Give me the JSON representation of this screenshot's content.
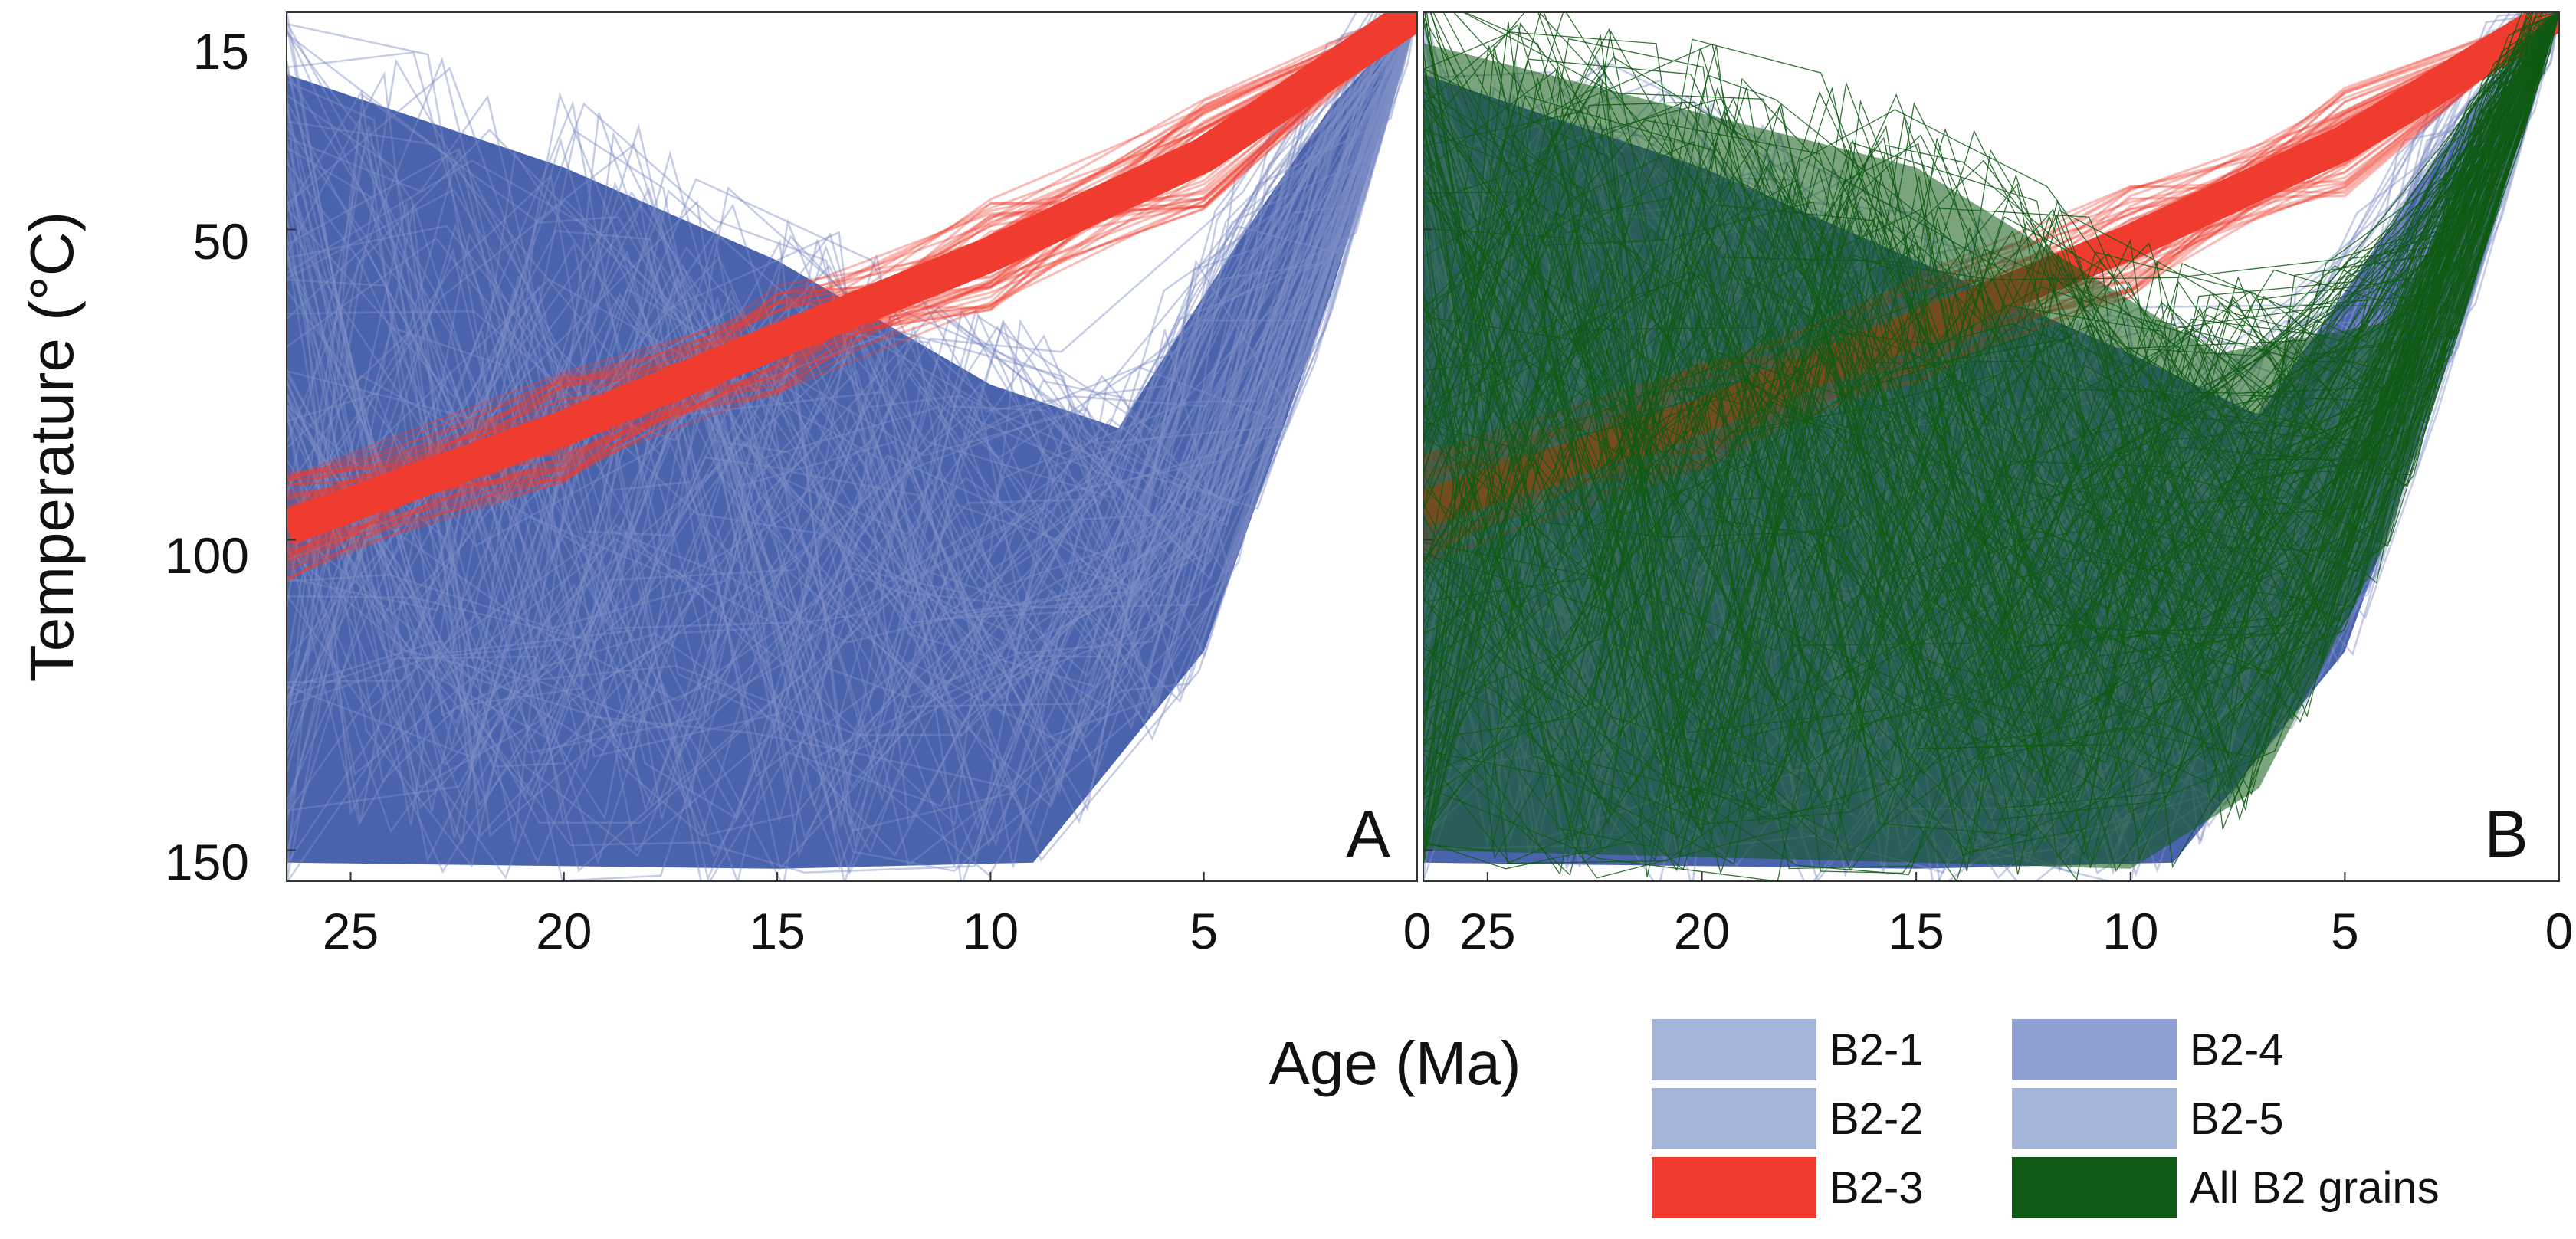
{
  "chart_data": {
    "type": "line",
    "ylabel": "Temperature (°C)",
    "xlabel": "Age (Ma)",
    "xlim": [
      26.5,
      0
    ],
    "ylim": [
      15,
      155
    ],
    "x_ticks": [
      25,
      20,
      15,
      10,
      5,
      0
    ],
    "y_ticks": [
      15,
      50,
      100,
      150
    ],
    "panels": [
      {
        "label": "A",
        "series": [
          {
            "name": "B2-1..B2-5 (blue)",
            "color": "#4a63ad",
            "description": "dense envelope of cooling paths",
            "upper_envelope": [
              [
                26.5,
                25
              ],
              [
                20,
                40
              ],
              [
                15,
                55
              ],
              [
                10,
                75
              ],
              [
                7,
                82
              ],
              [
                4,
                50
              ],
              [
                2,
                30
              ],
              [
                0,
                15
              ]
            ],
            "lower_envelope": [
              [
                26.5,
                152
              ],
              [
                15,
                153
              ],
              [
                9,
                152
              ],
              [
                5,
                118
              ],
              [
                2,
                60
              ],
              [
                0,
                15
              ]
            ]
          },
          {
            "name": "B2-3 (red)",
            "color": "#f03c2e",
            "description": "narrow band of linear cooling",
            "path": [
              [
                26.5,
                98
              ],
              [
                20,
                82
              ],
              [
                15,
                68
              ],
              [
                10,
                54
              ],
              [
                5,
                38
              ],
              [
                0,
                15
              ]
            ]
          }
        ]
      },
      {
        "label": "B",
        "series": [
          {
            "name": "B2-1..B2-5 (blue)",
            "color": "#4a63ad",
            "upper_envelope": [
              [
                26.5,
                25
              ],
              [
                20,
                40
              ],
              [
                15,
                55
              ],
              [
                10,
                70
              ],
              [
                7,
                80
              ],
              [
                4,
                50
              ],
              [
                2,
                30
              ],
              [
                0,
                15
              ]
            ],
            "lower_envelope": [
              [
                26.5,
                152
              ],
              [
                15,
                153
              ],
              [
                9,
                152
              ],
              [
                5,
                118
              ],
              [
                2,
                60
              ],
              [
                0,
                15
              ]
            ]
          },
          {
            "name": "B2-3 (red)",
            "color": "#f03c2e",
            "path": [
              [
                26.5,
                95
              ],
              [
                20,
                80
              ],
              [
                15,
                66
              ],
              [
                10,
                52
              ],
              [
                5,
                36
              ],
              [
                0,
                15
              ]
            ]
          },
          {
            "name": "All B2 grains (green)",
            "color": "#0f5a14",
            "upper_envelope": [
              [
                26.5,
                20
              ],
              [
                15,
                40
              ],
              [
                8,
                70
              ],
              [
                4,
                65
              ],
              [
                0,
                15
              ]
            ],
            "lower_envelope": [
              [
                26.5,
                150
              ],
              [
                15,
                152
              ],
              [
                10,
                153
              ],
              [
                7,
                140
              ],
              [
                4,
                100
              ],
              [
                2,
                55
              ],
              [
                0,
                15
              ]
            ]
          }
        ]
      }
    ],
    "legend": [
      {
        "label": "B2-1",
        "color": "#a4b3d8"
      },
      {
        "label": "B2-4",
        "color": "#8d9ed0"
      },
      {
        "label": "B2-2",
        "color": "#a4b3d8"
      },
      {
        "label": "B2-5",
        "color": "#a4b3d8"
      },
      {
        "label": "B2-3",
        "color": "#f03c2e"
      },
      {
        "label": "All B2 grains",
        "color": "#0f5a14"
      }
    ]
  }
}
